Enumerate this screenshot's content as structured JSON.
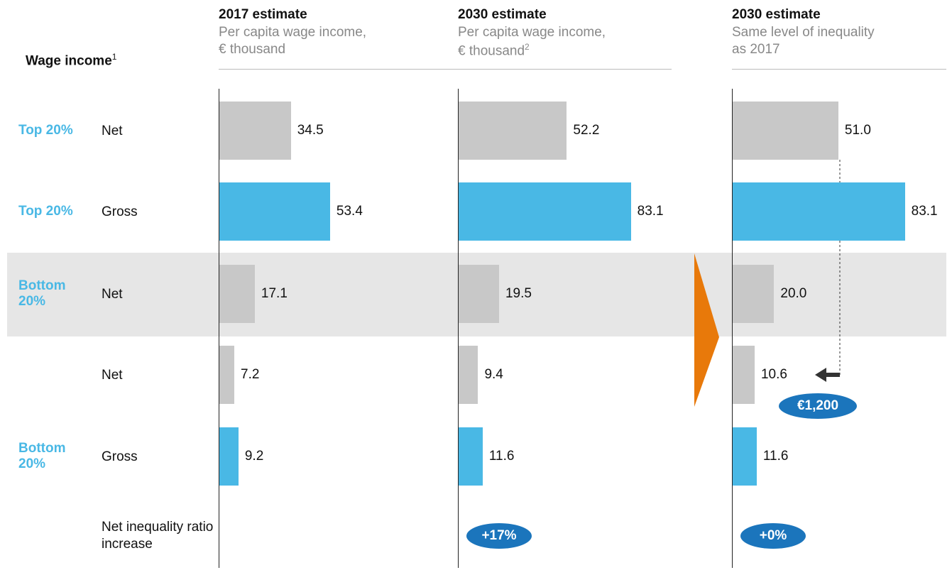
{
  "header": {
    "title": "Wage income",
    "footnote": "1"
  },
  "rows": [
    {
      "group": "Top 20%",
      "label": "Net"
    },
    {
      "group": "Top 20%",
      "label": "Gross"
    },
    {
      "group": "Bottom 20%",
      "label": "Net"
    },
    {
      "label": "Net"
    },
    {
      "group": "Bottom 20%",
      "label": "Gross"
    },
    {
      "label": "Net inequality ratio increase"
    }
  ],
  "chart_data": [
    {
      "type": "barh",
      "title": "2017 estimate",
      "subtitle": [
        "Per capita wage income,",
        "€ thousand"
      ],
      "values": [
        34.5,
        53.4,
        17.1,
        7.2,
        9.2
      ],
      "colors": [
        "#c8c8c8",
        "#49b8e5",
        "#c8c8c8",
        "#c8c8c8",
        "#49b8e5"
      ]
    },
    {
      "type": "barh",
      "title": "2030 estimate",
      "subtitle": [
        "Per capita wage income,",
        "€ thousand"
      ],
      "subtitle_note": "2",
      "values": [
        52.2,
        83.1,
        19.5,
        9.4,
        11.6
      ],
      "colors": [
        "#c8c8c8",
        "#49b8e5",
        "#c8c8c8",
        "#c8c8c8",
        "#49b8e5"
      ],
      "annotation": "+17%"
    },
    {
      "type": "barh",
      "title": "2030 estimate",
      "subtitle": [
        "Same level of inequality",
        "as 2017"
      ],
      "values": [
        51.0,
        83.1,
        20.0,
        10.6,
        11.6
      ],
      "value_labels": [
        "51.0",
        "83.1",
        "20.0",
        "10.6",
        "11.6"
      ],
      "colors": [
        "#c8c8c8",
        "#49b8e5",
        "#c8c8c8",
        "#c8c8c8",
        "#49b8e5"
      ],
      "annotation": "+0%",
      "callout": "€1,200"
    }
  ]
}
